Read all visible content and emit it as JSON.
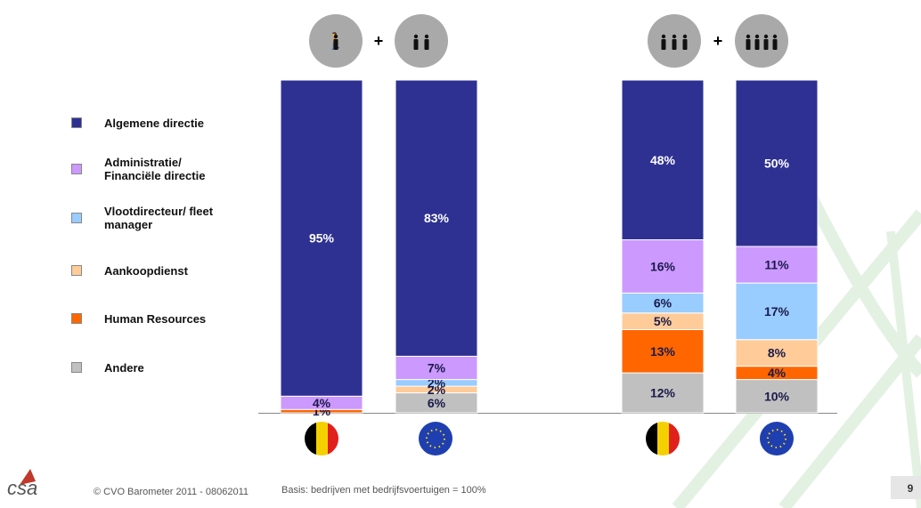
{
  "chart_data": {
    "type": "bar",
    "stacked": true,
    "categories": [
      null,
      null,
      null,
      null
    ],
    "ylim": [
      0,
      100
    ],
    "series": [
      {
        "name": "Algemene directie",
        "color": "#2e3192",
        "values": [
          95,
          83,
          48,
          50
        ],
        "value_labels": [
          "95%",
          "83%",
          "48%",
          "50%"
        ]
      },
      {
        "name": "Administratie/ Financiële directie",
        "color": "#cc99ff",
        "values": [
          4,
          7,
          16,
          11
        ],
        "value_labels": [
          "4%",
          "7%",
          "16%",
          "11%"
        ]
      },
      {
        "name": "Vlootdirecteur/ fleet manager",
        "color": "#99ccff",
        "values": [
          null,
          2,
          6,
          17
        ],
        "value_labels": [
          null,
          "2%",
          "6%",
          "17%"
        ]
      },
      {
        "name": "Aankoopdienst",
        "color": "#ffcc99",
        "values": [
          null,
          2,
          5,
          8
        ],
        "value_labels": [
          null,
          "2%",
          "5%",
          "8%"
        ]
      },
      {
        "name": "Human Resources",
        "color": "#ff6600",
        "values": [
          1,
          null,
          13,
          4
        ],
        "value_labels": [
          "1%",
          null,
          "13%",
          "4%"
        ]
      },
      {
        "name": "Andere",
        "color": "#c0c0c0",
        "values": [
          null,
          6,
          12,
          10
        ],
        "value_labels": [
          null,
          "6%",
          "12%",
          "10%"
        ]
      }
    ]
  },
  "footer": {
    "logo": "csa",
    "copyright": "© CVO Barometer 2011 - 08062011",
    "basis": "Basis: bedrijven met bedrijfsvoertuigen = 100%",
    "page": "9"
  }
}
